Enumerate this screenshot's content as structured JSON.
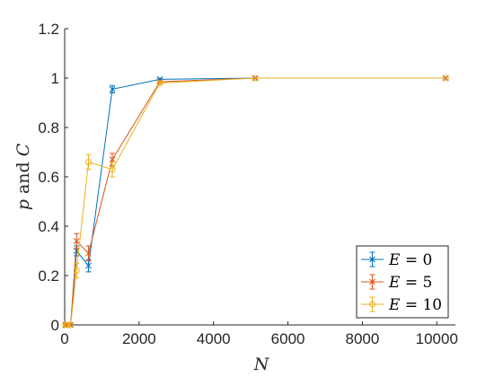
{
  "chart_data": {
    "type": "line",
    "xlabel": "N",
    "ylabel_var": "p",
    "ylabel_mid": " and ",
    "ylabel_var2": "C",
    "xlim": [
      0,
      10500
    ],
    "ylim": [
      0,
      1.2
    ],
    "xticks": [
      0,
      2000,
      4000,
      6000,
      8000,
      10000
    ],
    "xtick_labels": [
      "0",
      "2000",
      "4000",
      "6000",
      "8000",
      "10000"
    ],
    "yticks": [
      0,
      0.2,
      0.4,
      0.6,
      0.8,
      1,
      1.2
    ],
    "ytick_labels": [
      "0",
      "0.2",
      "0.4",
      "0.6",
      "0.8",
      "1",
      "1.2"
    ],
    "grid": false,
    "legend_position": "bottom-right",
    "x": [
      20,
      40,
      80,
      160,
      320,
      640,
      1280,
      2560,
      5120,
      10240
    ],
    "series": [
      {
        "name": "E = 0",
        "label_var": "E",
        "label_rest": " = 0",
        "color": "#0072BD",
        "marker": "x",
        "values": [
          0,
          0,
          0,
          0,
          0.3,
          0.24,
          0.955,
          0.995,
          1,
          1
        ],
        "errors": [
          0,
          0,
          0,
          0,
          0.02,
          0.025,
          0.015,
          0.005,
          0,
          0
        ]
      },
      {
        "name": "E = 5",
        "label_var": "E",
        "label_rest": " = 5",
        "color": "#D95319",
        "marker": "x",
        "values": [
          0,
          0,
          0,
          0,
          0.34,
          0.29,
          0.67,
          0.985,
          1,
          1
        ],
        "errors": [
          0,
          0,
          0,
          0,
          0.03,
          0.03,
          0.025,
          0.005,
          0,
          0
        ]
      },
      {
        "name": "E = 10",
        "label_var": "E",
        "label_rest": " = 10",
        "color": "#EDB120",
        "marker": "o",
        "values": [
          0,
          0,
          0,
          0,
          0.22,
          0.66,
          0.63,
          0.98,
          1,
          1
        ],
        "errors": [
          0,
          0,
          0,
          0,
          0.03,
          0.03,
          0.03,
          0.005,
          0,
          0
        ]
      }
    ]
  }
}
